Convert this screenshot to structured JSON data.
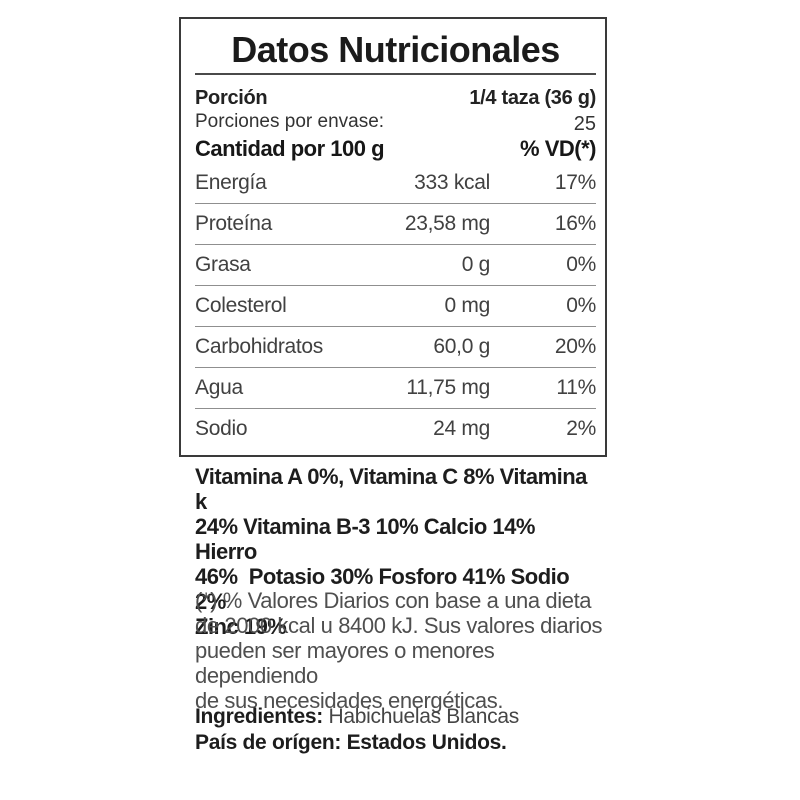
{
  "label": {
    "title": "Datos Nutricionales",
    "serving": {
      "label": "Porción",
      "value": "1/4 taza (36 g)"
    },
    "servings_per_container": {
      "label": "Porciones por envase:",
      "value": "25"
    },
    "column_header": {
      "label": "Cantidad por 100 g",
      "dv_label": "% VD(*)"
    },
    "rows": [
      {
        "name": "Energía",
        "amount": "333 kcal",
        "dv": "17%"
      },
      {
        "name": "Proteína",
        "amount": "23,58 mg",
        "dv": "16%"
      },
      {
        "name": "Grasa",
        "amount": "0 g",
        "dv": "0%"
      },
      {
        "name": "Colesterol",
        "amount": "0 mg",
        "dv": "0%"
      },
      {
        "name": "Carbohidratos",
        "amount": "60,0 g",
        "dv": "20%"
      },
      {
        "name": "Agua",
        "amount": "11,75 mg",
        "dv": "11%"
      },
      {
        "name": "Sodio",
        "amount": "24 mg",
        "dv": "2%"
      }
    ]
  },
  "vitamins_text": "Vitamina A 0%, Vitamina C 8% Vitamina k\n24% Vitamina B-3 10% Calcio 14% Hierro\n46%  Potasio 30% Fosforo 41% Sodio 2%\nZinc 19%",
  "footnote_text": "(*) % Valores Diarios con base a una dieta\nde 2000 kcal u 8400 kJ. Sus valores diarios\npueden ser mayores o menores dependiendo\nde sus necesidades energéticas.",
  "ingredients": {
    "label": "Ingredientes:",
    "value": " Habichuelas Blancas"
  },
  "origin_text": "País de orígen: Estados Unidos.",
  "colors": {
    "text": "#231f20",
    "row_text": "#414141",
    "separator": "#8f8f8f",
    "border": "#3a3a3a",
    "footnote_text": "#4f4f4f",
    "background": "#ffffff"
  }
}
